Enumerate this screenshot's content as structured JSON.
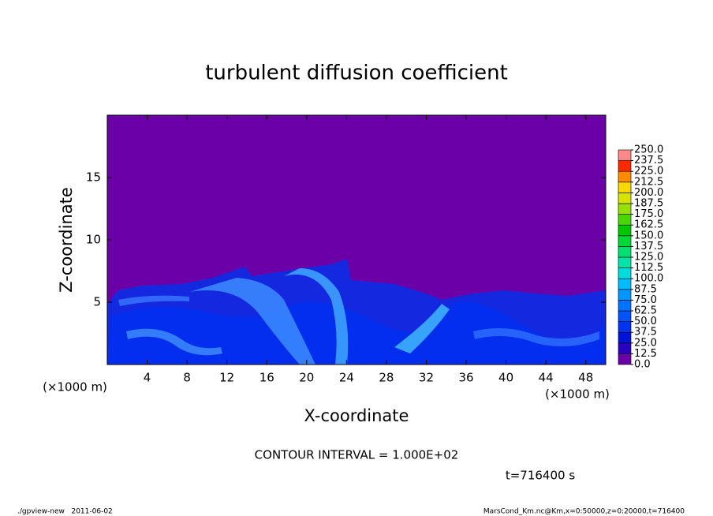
{
  "chart_data": {
    "type": "contour",
    "title": "turbulent diffusion coefficient",
    "x_label": "X-coordinate",
    "y_label": "Z-coordinate",
    "x_unit": "(×1000 m)",
    "y_unit": "(×1000 m)",
    "xlim": [
      0,
      50
    ],
    "ylim": [
      0,
      20
    ],
    "xticks": [
      4,
      8,
      12,
      16,
      20,
      24,
      28,
      32,
      36,
      40,
      44,
      48
    ],
    "yticks": [
      5,
      10,
      15
    ],
    "contour_note": "CONTOUR INTERVAL = 1.000E+02",
    "time_label": "t=716400 s",
    "footer_left": "./gpview-new   2011-06-02",
    "footer_right": "MarsCond_Km.nc@Km,x=0:50000,z=0:20000,t=716400",
    "colorbar": {
      "ticks": [
        {
          "value": 0,
          "label": "0.0"
        },
        {
          "value": 12.5,
          "label": "12.5"
        },
        {
          "value": 25,
          "label": "25.0"
        },
        {
          "value": 37.5,
          "label": "37.5"
        },
        {
          "value": 50,
          "label": "50.0"
        },
        {
          "value": 62.5,
          "label": "62.5"
        },
        {
          "value": 75,
          "label": "75.0"
        },
        {
          "value": 87.5,
          "label": "87.5"
        },
        {
          "value": 100,
          "label": "100.0"
        },
        {
          "value": 112.5,
          "label": "112.5"
        },
        {
          "value": 125,
          "label": "125.0"
        },
        {
          "value": 137.5,
          "label": "137.5"
        },
        {
          "value": 150,
          "label": "150.0"
        },
        {
          "value": 162.5,
          "label": "162.5"
        },
        {
          "value": 175,
          "label": "175.0"
        },
        {
          "value": 187.5,
          "label": "187.5"
        },
        {
          "value": 200,
          "label": "200.0"
        },
        {
          "value": 212.5,
          "label": "212.5"
        },
        {
          "value": 225,
          "label": "225.0"
        },
        {
          "value": 237.5,
          "label": "237.5"
        },
        {
          "value": 250,
          "label": "250.0"
        }
      ],
      "colors": [
        "#6c00a8",
        "#2a00c0",
        "#0014d8",
        "#0034f0",
        "#0054ff",
        "#0074ff",
        "#0098ff",
        "#00bcff",
        "#00dcdc",
        "#00e4a8",
        "#00e070",
        "#00d838",
        "#00c800",
        "#48d800",
        "#98e000",
        "#d8e400",
        "#f8d800",
        "#ff8c00",
        "#ff2800",
        "#ff8888"
      ]
    }
  }
}
